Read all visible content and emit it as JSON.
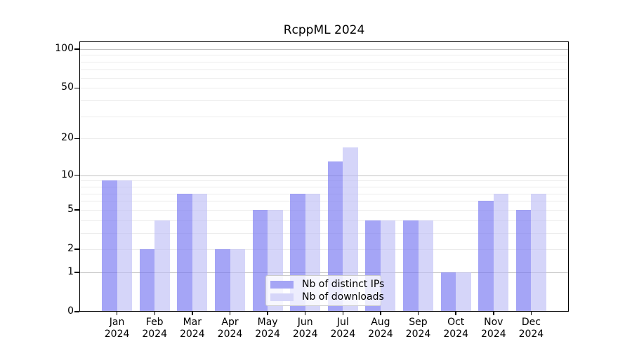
{
  "chart_data": {
    "type": "bar",
    "title": "RcppML 2024",
    "xlabel": "",
    "ylabel": "",
    "categories": [
      "Jan",
      "Feb",
      "Mar",
      "Apr",
      "May",
      "Jun",
      "Jul",
      "Aug",
      "Sep",
      "Oct",
      "Nov",
      "Dec"
    ],
    "year_label": "2024",
    "series": [
      {
        "name": "Nb of distinct IPs",
        "color": "rgba(119,119,241,0.66)",
        "legend_color": "#a5a5f5",
        "values": [
          9,
          2,
          7,
          2,
          5,
          7,
          13,
          4,
          4,
          1,
          6,
          5
        ]
      },
      {
        "name": "Nb of downloads",
        "color": "rgba(188,188,246,0.62)",
        "legend_color": "#d6d6f9",
        "values": [
          9,
          4,
          7,
          2,
          5,
          7,
          17,
          4,
          4,
          1,
          7,
          7
        ]
      }
    ],
    "yscale": "log1p",
    "ylim": [
      0,
      114.6
    ],
    "yticks": [
      0,
      1,
      2,
      5,
      10,
      20,
      50,
      100
    ],
    "major_gridlines": [
      1,
      10,
      100
    ],
    "minor_gridlines": [
      2,
      3,
      4,
      5,
      6,
      7,
      8,
      9,
      20,
      30,
      40,
      50,
      60,
      70,
      80,
      90
    ],
    "grid": true,
    "legend_position": "lower center",
    "colors": {
      "major_gridline": "#c2c2c2",
      "minor_gridline": "#ececec",
      "axis": "#000000",
      "background": "#ffffff"
    }
  }
}
